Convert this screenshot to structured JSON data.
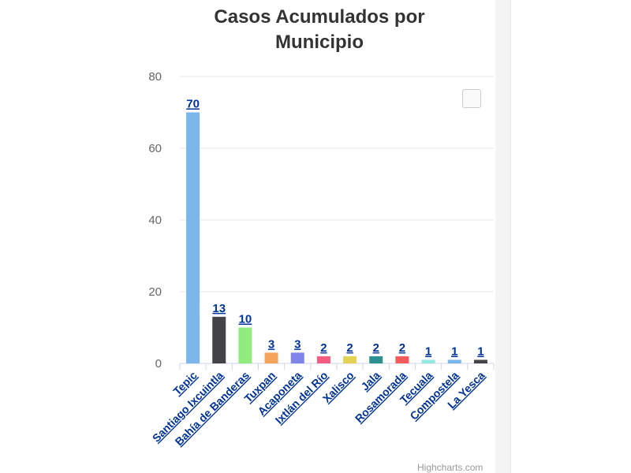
{
  "chart_data": {
    "type": "bar",
    "title": "Casos Acumulados por Municipio",
    "title_lines": [
      "Casos Acumulados por",
      "Municipio"
    ],
    "categories": [
      "Tepic",
      "Santiago Ixcuintla",
      "Bahía de Banderas",
      "Tuxpan",
      "Acaponeta",
      "Ixtlán del Río",
      "Xalisco",
      "Jala",
      "Rosamorada",
      "Tecuala",
      "Compostela",
      "La Yesca"
    ],
    "values": [
      70,
      13,
      10,
      3,
      3,
      2,
      2,
      2,
      2,
      1,
      1,
      1
    ],
    "colors": [
      "#7cb5ec",
      "#434348",
      "#90ed7d",
      "#f7a35c",
      "#8085e9",
      "#f15c80",
      "#e4d354",
      "#2b908f",
      "#f45b5b",
      "#91e8e1",
      "#7cb5ec",
      "#434348"
    ],
    "ylim": [
      0,
      80
    ],
    "yticks": [
      0,
      20,
      40,
      60,
      80
    ],
    "xlabel": "",
    "ylabel": "",
    "grid": true,
    "legend": "none",
    "data_labels": true
  },
  "credits": "Highcharts.com",
  "colors": {
    "title": "#333333",
    "axis_label": "#666666",
    "category_label": "#003399",
    "grid": "#e6e6e6",
    "data_label": "#003399"
  }
}
